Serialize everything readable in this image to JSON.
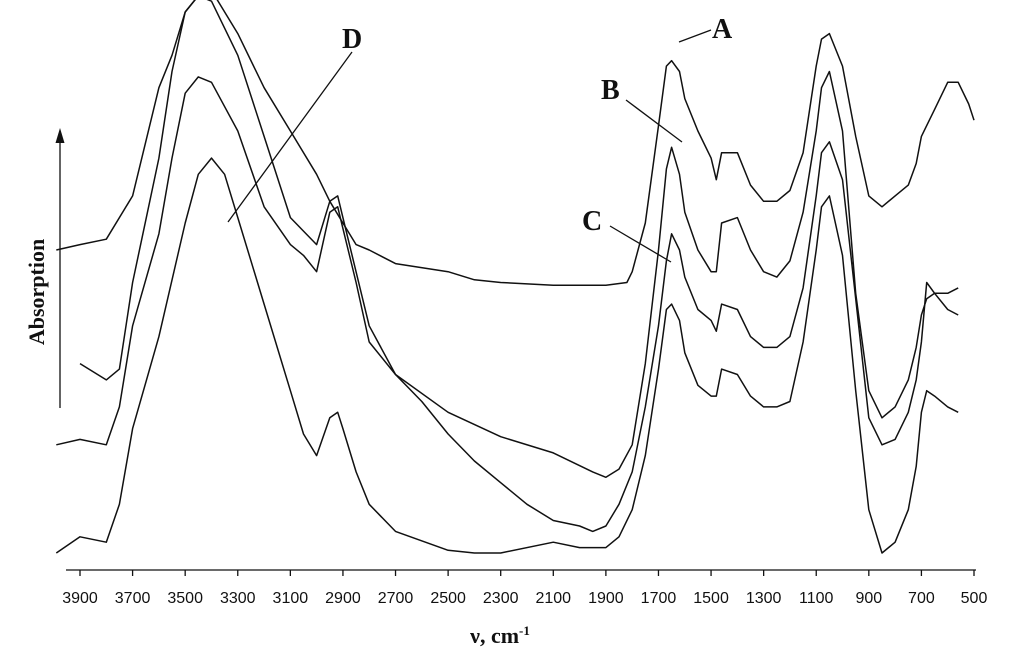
{
  "chart_data": {
    "type": "line",
    "title": "",
    "xlabel": "ν, cm",
    "xlabel_sup": "-1",
    "ylabel": "Absorption",
    "x_reversed": true,
    "xlim": [
      4000,
      500
    ],
    "x_ticks": [
      3900,
      3700,
      3500,
      3300,
      3100,
      2900,
      2700,
      2500,
      2300,
      2100,
      1900,
      1700,
      1500,
      1300,
      1100,
      900,
      700,
      500
    ],
    "y_ticks": [],
    "grid": false,
    "legend": "none",
    "annotations": [
      "A",
      "B",
      "C",
      "D"
    ],
    "series": [
      {
        "name": "A",
        "points": [
          [
            3990,
            0.56
          ],
          [
            3900,
            0.57
          ],
          [
            3800,
            0.58
          ],
          [
            3700,
            0.66
          ],
          [
            3600,
            0.86
          ],
          [
            3550,
            0.92
          ],
          [
            3500,
            1.0
          ],
          [
            3450,
            1.03
          ],
          [
            3400,
            1.04
          ],
          [
            3300,
            0.96
          ],
          [
            3200,
            0.86
          ],
          [
            3100,
            0.78
          ],
          [
            3000,
            0.7
          ],
          [
            2950,
            0.65
          ],
          [
            2900,
            0.61
          ],
          [
            2850,
            0.57
          ],
          [
            2800,
            0.56
          ],
          [
            2700,
            0.535
          ],
          [
            2500,
            0.52
          ],
          [
            2400,
            0.505
          ],
          [
            2300,
            0.5
          ],
          [
            2100,
            0.495
          ],
          [
            1900,
            0.495
          ],
          [
            1820,
            0.5
          ],
          [
            1800,
            0.52
          ],
          [
            1750,
            0.61
          ],
          [
            1700,
            0.79
          ],
          [
            1670,
            0.9
          ],
          [
            1650,
            0.91
          ],
          [
            1620,
            0.89
          ],
          [
            1600,
            0.84
          ],
          [
            1550,
            0.78
          ],
          [
            1500,
            0.73
          ],
          [
            1480,
            0.69
          ],
          [
            1460,
            0.74
          ],
          [
            1400,
            0.74
          ],
          [
            1350,
            0.68
          ],
          [
            1300,
            0.65
          ],
          [
            1250,
            0.65
          ],
          [
            1200,
            0.67
          ],
          [
            1150,
            0.74
          ],
          [
            1100,
            0.9
          ],
          [
            1080,
            0.95
          ],
          [
            1050,
            0.96
          ],
          [
            1000,
            0.9
          ],
          [
            950,
            0.77
          ],
          [
            900,
            0.66
          ],
          [
            850,
            0.64
          ],
          [
            800,
            0.66
          ],
          [
            750,
            0.68
          ],
          [
            720,
            0.72
          ],
          [
            700,
            0.77
          ],
          [
            650,
            0.82
          ],
          [
            600,
            0.87
          ],
          [
            560,
            0.87
          ],
          [
            520,
            0.83
          ],
          [
            500,
            0.8
          ]
        ]
      },
      {
        "name": "B",
        "points": [
          [
            3900,
            0.35
          ],
          [
            3800,
            0.32
          ],
          [
            3750,
            0.34
          ],
          [
            3700,
            0.5
          ],
          [
            3600,
            0.73
          ],
          [
            3550,
            0.89
          ],
          [
            3500,
            1.0
          ],
          [
            3450,
            1.03
          ],
          [
            3400,
            1.02
          ],
          [
            3300,
            0.92
          ],
          [
            3200,
            0.77
          ],
          [
            3100,
            0.62
          ],
          [
            3000,
            0.57
          ],
          [
            2950,
            0.65
          ],
          [
            2920,
            0.66
          ],
          [
            2900,
            0.62
          ],
          [
            2800,
            0.42
          ],
          [
            2700,
            0.33
          ],
          [
            2500,
            0.26
          ],
          [
            2300,
            0.215
          ],
          [
            2100,
            0.185
          ],
          [
            1950,
            0.15
          ],
          [
            1900,
            0.14
          ],
          [
            1850,
            0.155
          ],
          [
            1800,
            0.2
          ],
          [
            1750,
            0.35
          ],
          [
            1700,
            0.56
          ],
          [
            1670,
            0.71
          ],
          [
            1650,
            0.75
          ],
          [
            1620,
            0.7
          ],
          [
            1600,
            0.63
          ],
          [
            1550,
            0.56
          ],
          [
            1500,
            0.52
          ],
          [
            1480,
            0.52
          ],
          [
            1460,
            0.61
          ],
          [
            1400,
            0.62
          ],
          [
            1350,
            0.56
          ],
          [
            1300,
            0.52
          ],
          [
            1250,
            0.51
          ],
          [
            1200,
            0.54
          ],
          [
            1150,
            0.63
          ],
          [
            1100,
            0.78
          ],
          [
            1080,
            0.86
          ],
          [
            1050,
            0.89
          ],
          [
            1000,
            0.78
          ],
          [
            950,
            0.48
          ],
          [
            900,
            0.3
          ],
          [
            850,
            0.25
          ],
          [
            800,
            0.27
          ],
          [
            750,
            0.32
          ],
          [
            720,
            0.38
          ],
          [
            700,
            0.44
          ],
          [
            680,
            0.47
          ],
          [
            650,
            0.48
          ],
          [
            600,
            0.48
          ],
          [
            560,
            0.49
          ]
        ]
      },
      {
        "name": "C",
        "points": [
          [
            3990,
            0.2
          ],
          [
            3900,
            0.21
          ],
          [
            3800,
            0.2
          ],
          [
            3750,
            0.27
          ],
          [
            3700,
            0.42
          ],
          [
            3600,
            0.59
          ],
          [
            3550,
            0.73
          ],
          [
            3500,
            0.85
          ],
          [
            3450,
            0.88
          ],
          [
            3400,
            0.87
          ],
          [
            3300,
            0.78
          ],
          [
            3200,
            0.64
          ],
          [
            3100,
            0.57
          ],
          [
            3050,
            0.55
          ],
          [
            3000,
            0.52
          ],
          [
            2950,
            0.63
          ],
          [
            2920,
            0.64
          ],
          [
            2900,
            0.6
          ],
          [
            2850,
            0.5
          ],
          [
            2800,
            0.39
          ],
          [
            2700,
            0.33
          ],
          [
            2600,
            0.28
          ],
          [
            2500,
            0.22
          ],
          [
            2400,
            0.17
          ],
          [
            2300,
            0.13
          ],
          [
            2200,
            0.09
          ],
          [
            2100,
            0.06
          ],
          [
            2000,
            0.05
          ],
          [
            1950,
            0.04
          ],
          [
            1900,
            0.05
          ],
          [
            1850,
            0.09
          ],
          [
            1800,
            0.15
          ],
          [
            1750,
            0.27
          ],
          [
            1700,
            0.42
          ],
          [
            1670,
            0.54
          ],
          [
            1650,
            0.59
          ],
          [
            1620,
            0.56
          ],
          [
            1600,
            0.51
          ],
          [
            1550,
            0.45
          ],
          [
            1500,
            0.43
          ],
          [
            1480,
            0.41
          ],
          [
            1460,
            0.46
          ],
          [
            1400,
            0.45
          ],
          [
            1350,
            0.4
          ],
          [
            1300,
            0.38
          ],
          [
            1250,
            0.38
          ],
          [
            1200,
            0.4
          ],
          [
            1150,
            0.49
          ],
          [
            1100,
            0.66
          ],
          [
            1080,
            0.74
          ],
          [
            1050,
            0.76
          ],
          [
            1000,
            0.69
          ],
          [
            950,
            0.47
          ],
          [
            900,
            0.25
          ],
          [
            850,
            0.2
          ],
          [
            800,
            0.21
          ],
          [
            750,
            0.26
          ],
          [
            720,
            0.32
          ],
          [
            700,
            0.39
          ],
          [
            680,
            0.5
          ],
          [
            650,
            0.48
          ],
          [
            600,
            0.45
          ],
          [
            560,
            0.44
          ]
        ]
      },
      {
        "name": "D",
        "points": [
          [
            3990,
            0.0
          ],
          [
            3900,
            0.03
          ],
          [
            3800,
            0.02
          ],
          [
            3750,
            0.09
          ],
          [
            3700,
            0.23
          ],
          [
            3600,
            0.4
          ],
          [
            3500,
            0.61
          ],
          [
            3450,
            0.7
          ],
          [
            3400,
            0.73
          ],
          [
            3350,
            0.7
          ],
          [
            3300,
            0.62
          ],
          [
            3200,
            0.46
          ],
          [
            3100,
            0.3
          ],
          [
            3050,
            0.22
          ],
          [
            3000,
            0.18
          ],
          [
            2950,
            0.25
          ],
          [
            2920,
            0.26
          ],
          [
            2900,
            0.23
          ],
          [
            2850,
            0.15
          ],
          [
            2800,
            0.09
          ],
          [
            2700,
            0.04
          ],
          [
            2500,
            0.005
          ],
          [
            2400,
            0.0
          ],
          [
            2300,
            0.0
          ],
          [
            2100,
            0.02
          ],
          [
            2000,
            0.01
          ],
          [
            1900,
            0.01
          ],
          [
            1850,
            0.03
          ],
          [
            1800,
            0.08
          ],
          [
            1750,
            0.18
          ],
          [
            1700,
            0.34
          ],
          [
            1670,
            0.45
          ],
          [
            1650,
            0.46
          ],
          [
            1620,
            0.43
          ],
          [
            1600,
            0.37
          ],
          [
            1550,
            0.31
          ],
          [
            1500,
            0.29
          ],
          [
            1480,
            0.29
          ],
          [
            1460,
            0.34
          ],
          [
            1400,
            0.33
          ],
          [
            1350,
            0.29
          ],
          [
            1300,
            0.27
          ],
          [
            1250,
            0.27
          ],
          [
            1200,
            0.28
          ],
          [
            1150,
            0.39
          ],
          [
            1100,
            0.56
          ],
          [
            1080,
            0.64
          ],
          [
            1050,
            0.66
          ],
          [
            1000,
            0.55
          ],
          [
            950,
            0.3
          ],
          [
            900,
            0.08
          ],
          [
            850,
            0.0
          ],
          [
            800,
            0.02
          ],
          [
            750,
            0.08
          ],
          [
            720,
            0.16
          ],
          [
            700,
            0.26
          ],
          [
            680,
            0.3
          ],
          [
            650,
            0.29
          ],
          [
            600,
            0.27
          ],
          [
            560,
            0.26
          ]
        ]
      }
    ]
  }
}
